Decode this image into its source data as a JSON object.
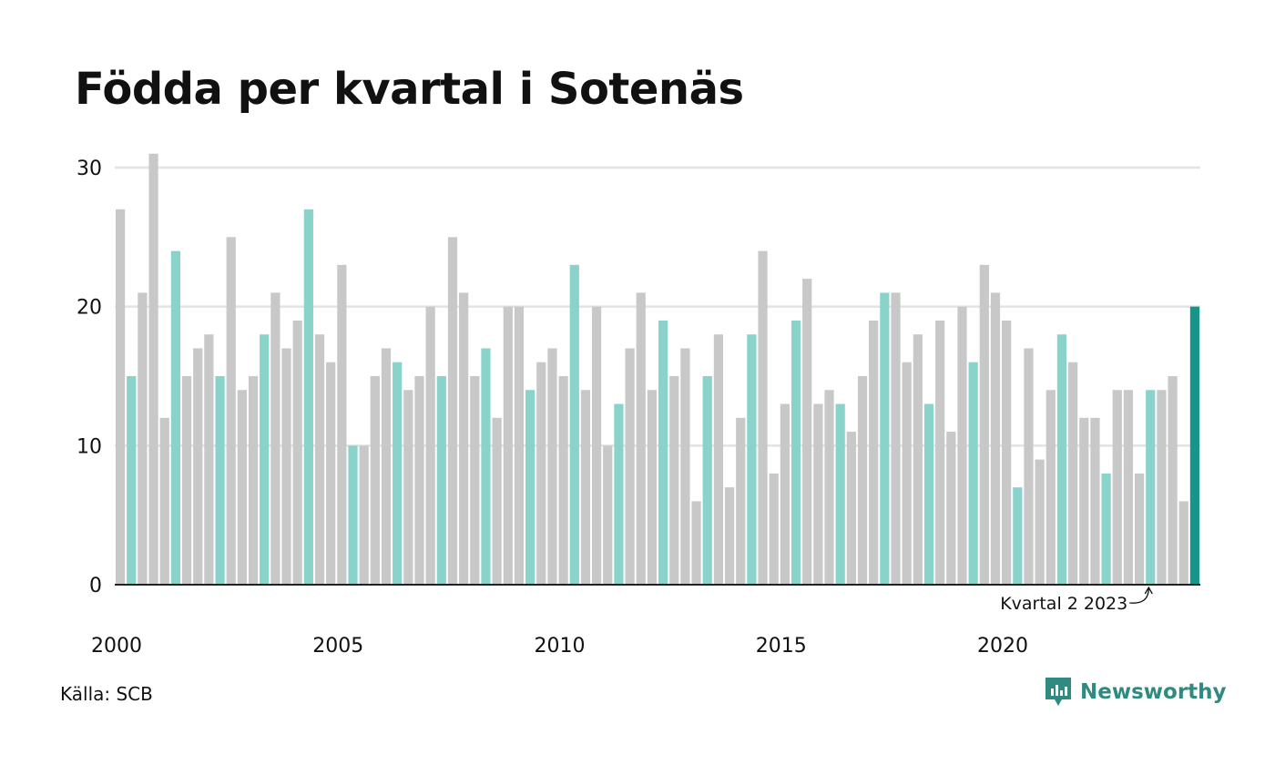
{
  "chart_data": {
    "type": "bar",
    "title": "Födda per kvartal i Sotenäs",
    "xlabel": "",
    "ylabel": "",
    "ylim": [
      0,
      30
    ],
    "yticks": [
      "0",
      "10",
      "20",
      "30"
    ],
    "xticks": [
      {
        "label": "2000",
        "index": 0
      },
      {
        "label": "2005",
        "index": 20
      },
      {
        "label": "2010",
        "index": 40
      },
      {
        "label": "2015",
        "index": 60
      },
      {
        "label": "2020",
        "index": 80
      }
    ],
    "grid": true,
    "highlight_quarter": 2,
    "colors": {
      "default": "#c8c8c8",
      "highlight": "#8ad3cb",
      "latest": "#16958a"
    },
    "annotation": {
      "text": "Kvartal 2 2023",
      "index": 93
    },
    "categories": [
      "2000 K1",
      "2000 K2",
      "2000 K3",
      "2000 K4",
      "2001 K1",
      "2001 K2",
      "2001 K3",
      "2001 K4",
      "2002 K1",
      "2002 K2",
      "2002 K3",
      "2002 K4",
      "2003 K1",
      "2003 K2",
      "2003 K3",
      "2003 K4",
      "2004 K1",
      "2004 K2",
      "2004 K3",
      "2004 K4",
      "2005 K1",
      "2005 K2",
      "2005 K3",
      "2005 K4",
      "2006 K1",
      "2006 K2",
      "2006 K3",
      "2006 K4",
      "2007 K1",
      "2007 K2",
      "2007 K3",
      "2007 K4",
      "2008 K1",
      "2008 K2",
      "2008 K3",
      "2008 K4",
      "2009 K1",
      "2009 K2",
      "2009 K3",
      "2009 K4",
      "2010 K1",
      "2010 K2",
      "2010 K3",
      "2010 K4",
      "2011 K1",
      "2011 K2",
      "2011 K3",
      "2011 K4",
      "2012 K1",
      "2012 K2",
      "2012 K3",
      "2012 K4",
      "2013 K1",
      "2013 K2",
      "2013 K3",
      "2013 K4",
      "2014 K1",
      "2014 K2",
      "2014 K3",
      "2014 K4",
      "2015 K1",
      "2015 K2",
      "2015 K3",
      "2015 K4",
      "2016 K1",
      "2016 K2",
      "2016 K3",
      "2016 K4",
      "2017 K1",
      "2017 K2",
      "2017 K3",
      "2017 K4",
      "2018 K1",
      "2018 K2",
      "2018 K3",
      "2018 K4",
      "2019 K1",
      "2019 K2",
      "2019 K3",
      "2019 K4",
      "2020 K1",
      "2020 K2",
      "2020 K3",
      "2020 K4",
      "2021 K1",
      "2021 K2",
      "2021 K3",
      "2021 K4",
      "2022 K1",
      "2022 K2",
      "2022 K3",
      "2022 K4",
      "2023 K1",
      "2023 K2",
      "2023 K3",
      "2023 K4",
      "2024 K1",
      "2024 K2"
    ],
    "values": [
      27,
      15,
      21,
      31,
      12,
      24,
      15,
      17,
      18,
      15,
      25,
      14,
      15,
      18,
      21,
      17,
      19,
      27,
      18,
      16,
      23,
      10,
      10,
      15,
      17,
      16,
      14,
      15,
      20,
      15,
      25,
      21,
      15,
      17,
      12,
      20,
      20,
      14,
      16,
      17,
      15,
      23,
      14,
      20,
      10,
      13,
      17,
      21,
      14,
      19,
      15,
      17,
      6,
      15,
      18,
      7,
      12,
      18,
      24,
      8,
      13,
      19,
      22,
      13,
      14,
      13,
      11,
      15,
      19,
      21,
      21,
      16,
      18,
      13,
      19,
      11,
      20,
      16,
      23,
      21,
      19,
      7,
      17,
      9,
      14,
      18,
      16,
      12,
      12,
      8,
      14,
      14,
      8,
      14,
      14,
      15,
      6,
      20
    ]
  },
  "footer": {
    "source": "Källa: SCB",
    "brand": "Newsworthy"
  }
}
